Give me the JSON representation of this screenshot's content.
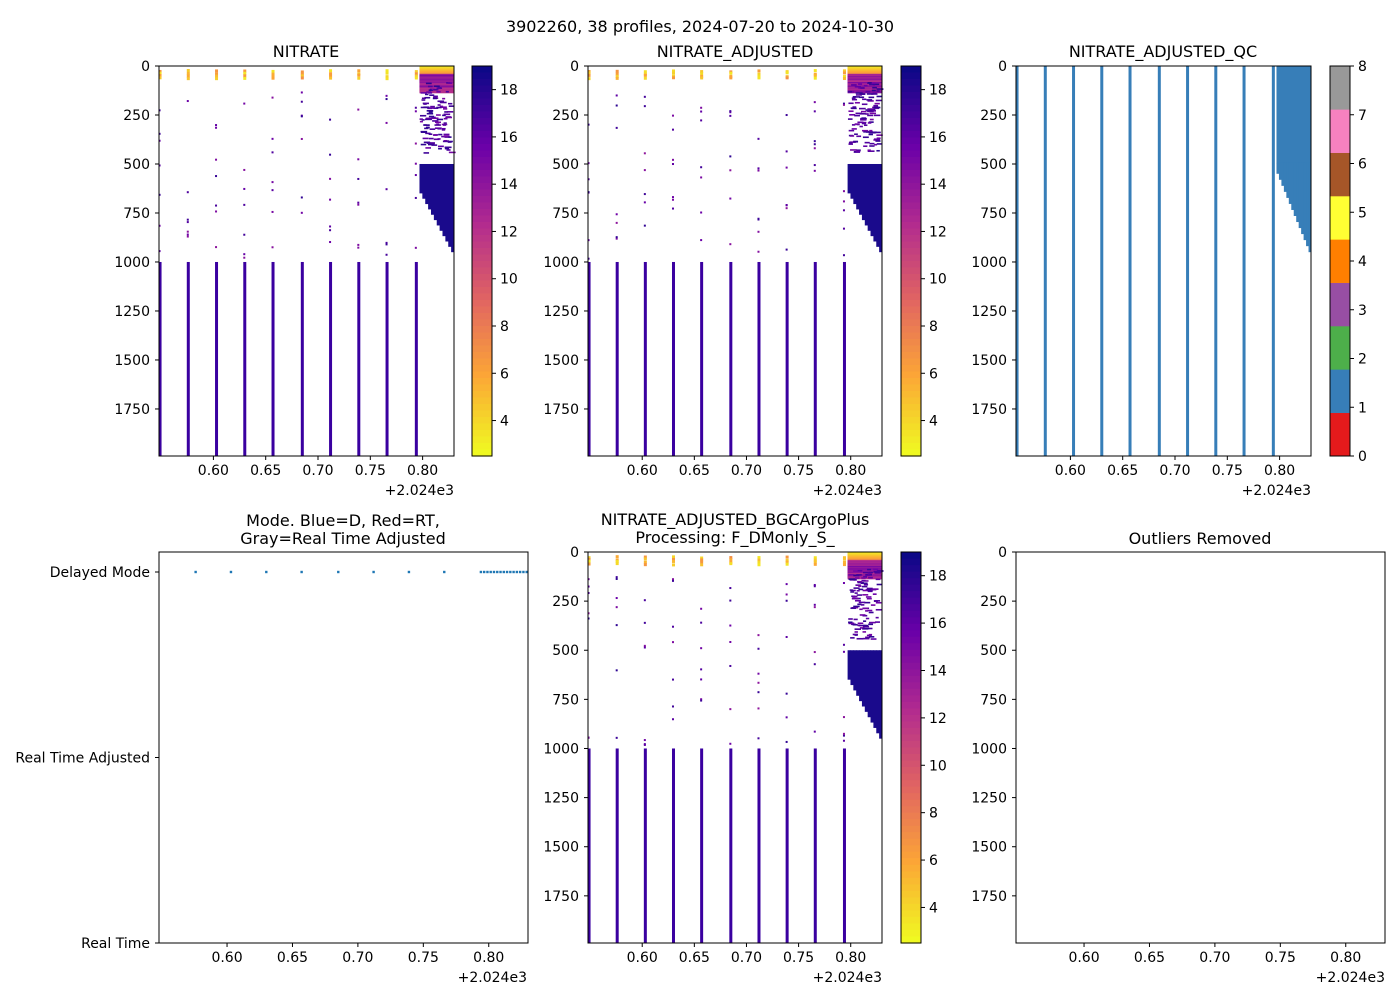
{
  "figure_title": "3902260, 38 profiles, 2024-07-20 to 2024-10-30",
  "colors": {
    "plasma_stops": [
      "#f0f921",
      "#fca636",
      "#e16462",
      "#b12a90",
      "#6a00a8",
      "#0d0887"
    ],
    "qc_colors": [
      "#e41a1c",
      "#377eb8",
      "#4daf4a",
      "#984ea3",
      "#ff7f00",
      "#ffff33",
      "#a65628",
      "#f781bf",
      "#999999"
    ],
    "line_blue": "#1f77b4",
    "qc_blue": "#377eb8",
    "deep_purple": "#3a00a0",
    "dark_blue": "#1a0a8c"
  },
  "chart_data": [
    {
      "id": "nitrate",
      "type": "heatmap",
      "title": "NITRATE",
      "xlim": [
        2024.548,
        2024.83
      ],
      "ylim": [
        1990,
        0
      ],
      "x_ticks": [
        0.6,
        0.65,
        0.7,
        0.75,
        0.8
      ],
      "x_tick_labels": [
        "0.60",
        "0.65",
        "0.70",
        "0.75",
        "0.80"
      ],
      "x_offset_label": "+2.024e3",
      "y_ticks": [
        0,
        250,
        500,
        750,
        1000,
        1250,
        1500,
        1750
      ],
      "y_tick_labels": [
        "0",
        "250",
        "500",
        "750",
        "1000",
        "1250",
        "1500",
        "1750"
      ],
      "colorbar": {
        "kind": "plasma",
        "range": [
          2.5,
          19
        ],
        "ticks": [
          4,
          6,
          8,
          10,
          12,
          14,
          16,
          18
        ],
        "tick_labels": [
          "4",
          "6",
          "8",
          "10",
          "12",
          "14",
          "16",
          "18"
        ]
      },
      "profile_dates": [
        2024.549,
        2024.576,
        2024.603,
        2024.63,
        2024.657,
        2024.685,
        2024.712,
        2024.739,
        2024.766,
        2024.794
      ],
      "deep_value": 17.5,
      "deep_depth_range": [
        1000,
        1990
      ],
      "dense_cluster": {
        "x_range": [
          2024.797,
          2024.83
        ],
        "surface_depth": 80,
        "scatter_depth": [
          80,
          440
        ],
        "wedge_top": 500,
        "wedge_bottom": [
          650,
          950
        ]
      }
    },
    {
      "id": "nitrate_adjusted",
      "type": "heatmap",
      "title": "NITRATE_ADJUSTED",
      "xlim": [
        2024.548,
        2024.83
      ],
      "ylim": [
        1990,
        0
      ],
      "x_ticks": [
        0.6,
        0.65,
        0.7,
        0.75,
        0.8
      ],
      "x_tick_labels": [
        "0.60",
        "0.65",
        "0.70",
        "0.75",
        "0.80"
      ],
      "x_offset_label": "+2.024e3",
      "y_ticks": [
        0,
        250,
        500,
        750,
        1000,
        1250,
        1500,
        1750
      ],
      "y_tick_labels": [
        "0",
        "250",
        "500",
        "750",
        "1000",
        "1250",
        "1500",
        "1750"
      ],
      "colorbar": {
        "kind": "plasma",
        "range": [
          2.5,
          19
        ],
        "ticks": [
          4,
          6,
          8,
          10,
          12,
          14,
          16,
          18
        ],
        "tick_labels": [
          "4",
          "6",
          "8",
          "10",
          "12",
          "14",
          "16",
          "18"
        ]
      },
      "profile_dates": [
        2024.549,
        2024.576,
        2024.603,
        2024.63,
        2024.657,
        2024.685,
        2024.712,
        2024.739,
        2024.766,
        2024.794
      ],
      "deep_value": 17.5,
      "deep_depth_range": [
        1000,
        1990
      ],
      "dense_cluster": {
        "x_range": [
          2024.797,
          2024.83
        ],
        "surface_depth": 80,
        "scatter_depth": [
          80,
          440
        ],
        "wedge_top": 500,
        "wedge_bottom": [
          650,
          950
        ]
      }
    },
    {
      "id": "nitrate_adjusted_qc",
      "type": "heatmap",
      "title": "NITRATE_ADJUSTED_QC",
      "xlim": [
        2024.548,
        2024.83
      ],
      "ylim": [
        1990,
        0
      ],
      "x_ticks": [
        0.6,
        0.65,
        0.7,
        0.75,
        0.8
      ],
      "x_tick_labels": [
        "0.60",
        "0.65",
        "0.70",
        "0.75",
        "0.80"
      ],
      "x_offset_label": "+2.024e3",
      "y_ticks": [
        0,
        250,
        500,
        750,
        1000,
        1250,
        1500,
        1750
      ],
      "y_tick_labels": [
        "0",
        "250",
        "500",
        "750",
        "1000",
        "1250",
        "1500",
        "1750"
      ],
      "colorbar": {
        "kind": "qc",
        "range": [
          0,
          8
        ],
        "ticks": [
          0,
          1,
          2,
          3,
          4,
          5,
          6,
          7,
          8
        ],
        "tick_labels": [
          "0",
          "1",
          "2",
          "3",
          "4",
          "5",
          "6",
          "7",
          "8"
        ]
      },
      "qc_value": 1,
      "profile_dates": [
        2024.549,
        2024.576,
        2024.603,
        2024.63,
        2024.657,
        2024.685,
        2024.712,
        2024.739,
        2024.766,
        2024.794
      ],
      "dense_cluster": {
        "x_range": [
          2024.797,
          2024.83
        ],
        "block_depth": 500,
        "wedge_bottom": [
          550,
          950
        ]
      }
    },
    {
      "id": "mode",
      "type": "scatter",
      "title_lines": [
        "Mode. Blue=D, Red=RT,",
        "Gray=Real Time Adjusted"
      ],
      "xlim": [
        2024.548,
        2024.83
      ],
      "x_ticks": [
        0.6,
        0.65,
        0.7,
        0.75,
        0.8
      ],
      "x_tick_labels": [
        "0.60",
        "0.65",
        "0.70",
        "0.75",
        "0.80"
      ],
      "x_offset_label": "+2.024e3",
      "y_categories": [
        "Delayed Mode",
        "Real Time Adjusted",
        "Real Time"
      ],
      "points": {
        "category": "Delayed Mode",
        "x": [
          2024.576,
          2024.603,
          2024.63,
          2024.657,
          2024.685,
          2024.712,
          2024.739,
          2024.766,
          2024.794,
          2024.7965,
          2024.799,
          2024.8015,
          2024.804,
          2024.8065,
          2024.809,
          2024.8115,
          2024.814,
          2024.8165,
          2024.819,
          2024.8215,
          2024.824,
          2024.8265,
          2024.829
        ]
      }
    },
    {
      "id": "bgc_plus",
      "type": "heatmap",
      "title_lines": [
        "NITRATE_ADJUSTED_BGCArgoPlus",
        "Processing: F_DMonly_S_"
      ],
      "xlim": [
        2024.548,
        2024.83
      ],
      "ylim": [
        1990,
        0
      ],
      "x_ticks": [
        0.6,
        0.65,
        0.7,
        0.75,
        0.8
      ],
      "x_tick_labels": [
        "0.60",
        "0.65",
        "0.70",
        "0.75",
        "0.80"
      ],
      "x_offset_label": "+2.024e3",
      "y_ticks": [
        0,
        250,
        500,
        750,
        1000,
        1250,
        1500,
        1750
      ],
      "y_tick_labels": [
        "0",
        "250",
        "500",
        "750",
        "1000",
        "1250",
        "1500",
        "1750"
      ],
      "colorbar": {
        "kind": "plasma",
        "range": [
          2.5,
          19
        ],
        "ticks": [
          4,
          6,
          8,
          10,
          12,
          14,
          16,
          18
        ],
        "tick_labels": [
          "4",
          "6",
          "8",
          "10",
          "12",
          "14",
          "16",
          "18"
        ]
      },
      "profile_dates": [
        2024.549,
        2024.576,
        2024.603,
        2024.63,
        2024.657,
        2024.685,
        2024.712,
        2024.739,
        2024.766,
        2024.794
      ],
      "deep_value": 17.5,
      "deep_depth_range": [
        1000,
        1990
      ],
      "dense_cluster": {
        "x_range": [
          2024.797,
          2024.83
        ],
        "surface_depth": 80,
        "scatter_depth": [
          80,
          440
        ],
        "wedge_top": 500,
        "wedge_bottom": [
          650,
          950
        ]
      }
    },
    {
      "id": "outliers",
      "type": "scatter",
      "title": "Outliers Removed",
      "xlim": [
        2024.548,
        2024.83
      ],
      "ylim": [
        1990,
        0
      ],
      "x_ticks": [
        0.6,
        0.65,
        0.7,
        0.75,
        0.8
      ],
      "x_tick_labels": [
        "0.60",
        "0.65",
        "0.70",
        "0.75",
        "0.80"
      ],
      "x_offset_label": "+2.024e3",
      "y_ticks": [
        0,
        250,
        500,
        750,
        1000,
        1250,
        1500,
        1750
      ],
      "y_tick_labels": [
        "0",
        "250",
        "500",
        "750",
        "1000",
        "1250",
        "1500",
        "1750"
      ],
      "points": []
    }
  ]
}
